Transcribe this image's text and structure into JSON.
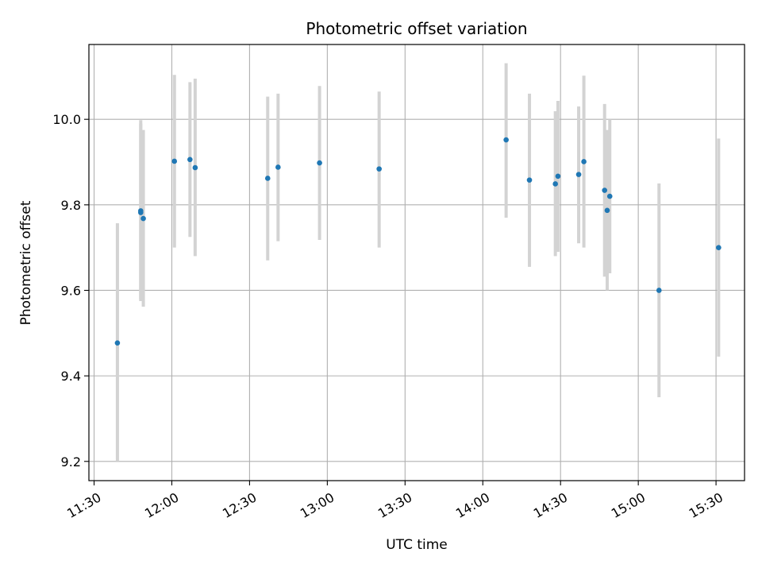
{
  "chart_data": {
    "type": "scatter",
    "title": "Photometric offset variation",
    "xlabel": "UTC time",
    "ylabel": "Photometric offset",
    "xlim": [
      "11:28",
      "15:41"
    ],
    "ylim": [
      9.155,
      10.175
    ],
    "grid": true,
    "x_ticks": [
      "11:30",
      "12:00",
      "12:30",
      "13:00",
      "13:30",
      "14:00",
      "14:30",
      "15:00",
      "15:30"
    ],
    "y_ticks": [
      9.2,
      9.4,
      9.6,
      9.8,
      10.0
    ],
    "y_tick_labels": [
      "9.2",
      "9.4",
      "9.6",
      "9.8",
      "10.0"
    ],
    "point_color": "#1f77b4",
    "errorbar_color": "#d3d3d3",
    "points": [
      {
        "x": "11:39",
        "y": 9.477,
        "low": 9.2,
        "high": 9.757
      },
      {
        "x": "11:48",
        "y": 9.786,
        "low": 9.575,
        "high": 9.998
      },
      {
        "x": "11:48",
        "y": 9.782,
        "low": 9.58,
        "high": 9.99
      },
      {
        "x": "11:49",
        "y": 9.768,
        "low": 9.562,
        "high": 9.975
      },
      {
        "x": "12:01",
        "y": 9.902,
        "low": 9.7,
        "high": 10.104
      },
      {
        "x": "12:07",
        "y": 9.906,
        "low": 9.725,
        "high": 10.087
      },
      {
        "x": "12:09",
        "y": 9.887,
        "low": 9.68,
        "high": 10.095
      },
      {
        "x": "12:37",
        "y": 9.862,
        "low": 9.67,
        "high": 10.053
      },
      {
        "x": "12:41",
        "y": 9.888,
        "low": 9.715,
        "high": 10.06
      },
      {
        "x": "12:57",
        "y": 9.898,
        "low": 9.718,
        "high": 10.078
      },
      {
        "x": "13:20",
        "y": 9.884,
        "low": 9.7,
        "high": 10.065
      },
      {
        "x": "14:09",
        "y": 9.952,
        "low": 9.77,
        "high": 10.131
      },
      {
        "x": "14:18",
        "y": 9.858,
        "low": 9.655,
        "high": 10.06
      },
      {
        "x": "14:28",
        "y": 9.849,
        "low": 9.68,
        "high": 10.019
      },
      {
        "x": "14:29",
        "y": 9.867,
        "low": 9.69,
        "high": 10.043
      },
      {
        "x": "14:37",
        "y": 9.871,
        "low": 9.71,
        "high": 10.03
      },
      {
        "x": "14:39",
        "y": 9.901,
        "low": 9.7,
        "high": 10.102
      },
      {
        "x": "14:47",
        "y": 9.834,
        "low": 9.632,
        "high": 10.036
      },
      {
        "x": "14:48",
        "y": 9.787,
        "low": 9.6,
        "high": 9.975
      },
      {
        "x": "14:49",
        "y": 9.82,
        "low": 9.64,
        "high": 10.0
      },
      {
        "x": "15:08",
        "y": 9.6,
        "low": 9.35,
        "high": 9.85
      },
      {
        "x": "15:31",
        "y": 9.7,
        "low": 9.445,
        "high": 9.955
      }
    ]
  }
}
